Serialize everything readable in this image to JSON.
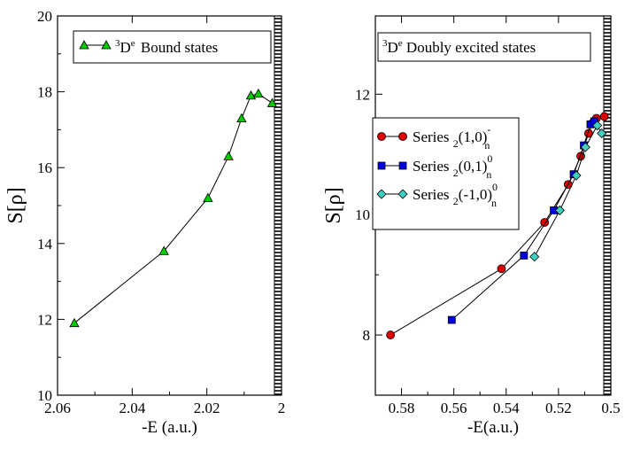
{
  "chart_data": [
    {
      "type": "line",
      "title": "",
      "xlabel": "-E (a.u.)",
      "ylabel": "S[ρ]",
      "xlim": [
        2.06,
        2.0
      ],
      "ylim": [
        10,
        20
      ],
      "xticks": [
        "2.06",
        "2.04",
        "2.02",
        "2"
      ],
      "yticks": [
        "10",
        "12",
        "14",
        "16",
        "18",
        "20"
      ],
      "legend_position": "top-right",
      "series": [
        {
          "name": "3De Bound states",
          "legend_sup": "3",
          "legend_main": "D",
          "legend_sup2": "e",
          "legend_rest": "Bound states",
          "marker": "triangle",
          "color": "#00cc00",
          "x": [
            2.0555,
            2.0315,
            2.0197,
            2.0142,
            2.0107,
            2.0082,
            2.0062,
            2.0025
          ],
          "y": [
            11.9,
            13.8,
            15.2,
            16.3,
            17.3,
            17.9,
            17.95,
            17.7
          ]
        }
      ]
    },
    {
      "type": "line",
      "title": "3De Doubly excited states",
      "title_sup": "3",
      "title_main": "D",
      "title_sup2": "e",
      "title_rest": "Doubly excited states",
      "xlabel": "-E(a.u.)",
      "ylabel": "S[ρ]",
      "xlim": [
        0.59,
        0.5
      ],
      "ylim": [
        7,
        13.3
      ],
      "xticks": [
        "0.58",
        "0.56",
        "0.54",
        "0.52",
        "0.5"
      ],
      "yticks": [
        "8",
        "10",
        "12"
      ],
      "legend_position": "center-left",
      "series": [
        {
          "name": "Series 2(1,0)n-",
          "legend_prefix": "Series",
          "legend_sub": "2",
          "legend_mid": "(1,0)",
          "legend_super": "-",
          "legend_subn": "n",
          "marker": "circle",
          "color": "#dd0000",
          "x": [
            0.5842,
            0.5418,
            0.5253,
            0.5163,
            0.5115,
            0.5085,
            0.5068,
            0.5055,
            0.5025
          ],
          "y": [
            8.0,
            9.1,
            9.87,
            10.5,
            10.97,
            11.35,
            11.53,
            11.6,
            11.63
          ]
        },
        {
          "name": "Series 2(0,1)n0",
          "legend_prefix": "Series",
          "legend_sub": "2",
          "legend_mid": "(0,1)",
          "legend_super": "0",
          "legend_subn": "n",
          "marker": "square",
          "color": "#0000dd",
          "x": [
            0.5608,
            0.5332,
            0.5218,
            0.5142,
            0.5103,
            0.5078,
            0.5063
          ],
          "y": [
            8.25,
            9.32,
            10.07,
            10.67,
            11.15,
            11.5,
            11.55
          ]
        },
        {
          "name": "Series 2(-1,0)n0",
          "legend_prefix": "Series",
          "legend_sub": "2",
          "legend_mid": "(-1,0)",
          "legend_super": "0",
          "legend_subn": "n",
          "marker": "diamond",
          "color": "#40d0c0",
          "x": [
            0.5292,
            0.5195,
            0.5132,
            0.5097,
            0.5052,
            0.5035
          ],
          "y": [
            9.3,
            10.07,
            10.65,
            11.12,
            11.48,
            11.35
          ]
        }
      ]
    }
  ]
}
